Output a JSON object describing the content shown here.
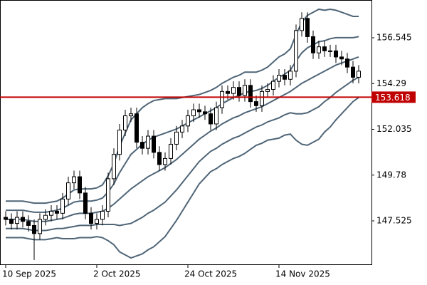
{
  "chart_data": {
    "type": "candlestick",
    "categories": [
      "10 Sep 2025",
      null,
      null,
      null,
      null,
      null,
      null,
      null,
      null,
      null,
      null,
      null,
      null,
      null,
      null,
      null,
      "2 Oct 2025",
      null,
      null,
      null,
      null,
      null,
      null,
      null,
      null,
      null,
      null,
      null,
      null,
      null,
      null,
      null,
      "24 Oct 2025",
      null,
      null,
      null,
      null,
      null,
      null,
      null,
      null,
      null,
      null,
      null,
      null,
      null,
      null,
      null,
      "14 Nov 2025",
      null,
      null,
      null,
      null,
      null,
      null,
      null,
      null,
      null,
      null,
      null,
      null,
      null,
      null
    ],
    "open": [
      147.7,
      147.6,
      147.4,
      147.7,
      147.5,
      147.3,
      146.9,
      147.6,
      147.8,
      148.0,
      147.9,
      148.6,
      149.4,
      149.7,
      148.9,
      147.9,
      147.4,
      147.6,
      148.0,
      149.6,
      150.8,
      152.0,
      152.7,
      152.8,
      151.4,
      151.1,
      151.7,
      150.9,
      150.3,
      150.6,
      151.3,
      151.9,
      152.2,
      152.7,
      153.0,
      152.9,
      152.8,
      152.3,
      153.1,
      153.9,
      153.8,
      154.1,
      153.7,
      154.2,
      153.4,
      153.2,
      153.9,
      154.0,
      154.4,
      154.7,
      154.5,
      154.9,
      156.9,
      157.5,
      156.6,
      155.8,
      156.1,
      155.9,
      155.9,
      155.6,
      155.5,
      155.1,
      154.6
    ],
    "high": [
      148.0,
      147.9,
      148.0,
      148.0,
      147.8,
      147.6,
      147.9,
      148.1,
      148.3,
      148.3,
      148.9,
      149.7,
      150.0,
      150.0,
      149.2,
      148.2,
      147.9,
      148.3,
      149.9,
      151.1,
      152.3,
      153.0,
      153.1,
      153.1,
      151.7,
      152.0,
      152.0,
      151.2,
      150.9,
      151.6,
      152.2,
      152.5,
      153.0,
      153.3,
      153.3,
      153.2,
      153.1,
      153.4,
      154.2,
      154.2,
      154.4,
      154.4,
      154.5,
      154.5,
      153.7,
      154.2,
      154.3,
      154.7,
      155.0,
      155.0,
      155.2,
      157.2,
      157.8,
      157.8,
      156.9,
      156.4,
      156.4,
      156.2,
      156.2,
      155.9,
      155.8,
      155.4,
      155.2
    ],
    "low": [
      147.3,
      147.1,
      147.1,
      147.2,
      147.0,
      145.6,
      146.6,
      147.3,
      147.5,
      147.6,
      147.6,
      148.3,
      149.1,
      148.6,
      147.6,
      147.1,
      147.1,
      147.3,
      147.7,
      149.3,
      150.5,
      151.7,
      152.4,
      151.1,
      150.8,
      150.8,
      150.6,
      150.0,
      150.0,
      150.3,
      151.0,
      151.6,
      151.9,
      152.4,
      152.6,
      152.5,
      152.0,
      152.0,
      152.8,
      153.5,
      153.5,
      153.4,
      153.4,
      153.1,
      152.9,
      152.9,
      153.6,
      153.7,
      154.1,
      154.2,
      154.2,
      154.6,
      156.6,
      156.3,
      155.5,
      155.5,
      155.6,
      155.6,
      155.3,
      155.2,
      154.8,
      154.3,
      154.3
    ],
    "close": [
      147.6,
      147.4,
      147.7,
      147.5,
      147.3,
      146.9,
      147.6,
      147.8,
      148.0,
      147.9,
      148.6,
      149.4,
      149.7,
      148.9,
      147.9,
      147.4,
      147.6,
      148.0,
      149.6,
      150.8,
      152.0,
      152.7,
      152.8,
      151.4,
      151.1,
      151.7,
      150.9,
      150.3,
      150.6,
      151.3,
      151.9,
      152.2,
      152.7,
      153.0,
      152.9,
      152.8,
      152.3,
      153.1,
      153.9,
      153.8,
      154.1,
      153.7,
      154.2,
      153.4,
      153.2,
      153.9,
      154.0,
      154.4,
      154.7,
      154.5,
      154.9,
      156.9,
      157.5,
      156.6,
      155.8,
      156.1,
      155.9,
      155.9,
      155.6,
      155.5,
      155.1,
      154.6,
      154.9
    ],
    "up_color": "#ffffff",
    "down_color": "#000000",
    "lines": [
      {
        "color": "#4f6577",
        "values": [
          148.5,
          148.5,
          148.5,
          148.5,
          148.45,
          148.4,
          148.4,
          148.4,
          148.45,
          148.5,
          148.65,
          148.85,
          149.05,
          149.1,
          149.1,
          149.1,
          149.15,
          149.3,
          149.75,
          150.35,
          151.2,
          151.85,
          152.5,
          152.8,
          153.1,
          153.3,
          153.45,
          153.5,
          153.55,
          153.55,
          153.55,
          153.6,
          153.65,
          153.7,
          153.75,
          153.85,
          153.95,
          154.1,
          154.3,
          154.45,
          154.6,
          154.7,
          154.85,
          154.85,
          154.85,
          154.95,
          155.1,
          155.35,
          155.6,
          155.75,
          156.0,
          156.7,
          157.3,
          157.65,
          157.8,
          157.95,
          157.9,
          157.95,
          157.9,
          157.8,
          157.7,
          157.6,
          157.6
        ]
      },
      {
        "color": "#4f6577",
        "values": [
          148.05,
          148.05,
          148.05,
          148.05,
          148.0,
          147.95,
          147.95,
          147.95,
          148.0,
          148.05,
          148.15,
          148.3,
          148.45,
          148.5,
          148.5,
          148.5,
          148.55,
          148.65,
          148.95,
          149.35,
          149.9,
          150.35,
          150.8,
          151.05,
          151.3,
          151.5,
          151.65,
          151.75,
          151.85,
          151.95,
          152.05,
          152.2,
          152.35,
          152.5,
          152.65,
          152.8,
          152.95,
          153.1,
          153.3,
          153.45,
          153.6,
          153.7,
          153.85,
          153.9,
          153.95,
          154.05,
          154.2,
          154.4,
          154.6,
          154.75,
          154.95,
          155.4,
          155.8,
          156.05,
          156.2,
          156.35,
          156.4,
          156.5,
          156.55,
          156.55,
          156.55,
          156.55,
          156.6
        ]
      },
      {
        "color": "#4f6577",
        "values": [
          147.6,
          147.6,
          147.6,
          147.6,
          147.55,
          147.5,
          147.5,
          147.5,
          147.55,
          147.6,
          147.65,
          147.75,
          147.85,
          147.9,
          147.9,
          147.9,
          147.95,
          148.0,
          148.15,
          148.35,
          148.6,
          148.85,
          149.1,
          149.3,
          149.5,
          149.7,
          149.85,
          150.0,
          150.15,
          150.35,
          150.55,
          150.8,
          151.05,
          151.3,
          151.55,
          151.75,
          151.95,
          152.1,
          152.3,
          152.45,
          152.6,
          152.7,
          152.85,
          152.95,
          153.05,
          153.15,
          153.3,
          153.45,
          153.6,
          153.75,
          153.9,
          154.1,
          154.3,
          154.45,
          154.6,
          154.75,
          154.9,
          155.05,
          155.2,
          155.3,
          155.4,
          155.5,
          155.6
        ]
      },
      {
        "color": "#4f6577",
        "values": [
          147.15,
          147.15,
          147.15,
          147.15,
          147.1,
          147.05,
          147.05,
          147.05,
          147.1,
          147.15,
          147.15,
          147.2,
          147.25,
          147.3,
          147.3,
          147.3,
          147.35,
          147.35,
          147.35,
          147.35,
          147.3,
          147.35,
          147.4,
          147.55,
          147.7,
          147.9,
          148.05,
          148.25,
          148.45,
          148.75,
          149.05,
          149.4,
          149.75,
          150.1,
          150.45,
          150.7,
          150.95,
          151.1,
          151.3,
          151.45,
          151.6,
          151.7,
          151.85,
          152.0,
          152.15,
          152.25,
          152.4,
          152.5,
          152.6,
          152.75,
          152.85,
          152.8,
          152.8,
          152.85,
          153.0,
          153.15,
          153.4,
          153.6,
          153.85,
          154.05,
          154.25,
          154.45,
          154.6
        ]
      },
      {
        "color": "#4f6577",
        "values": [
          146.7,
          146.7,
          146.7,
          146.7,
          146.65,
          146.6,
          146.6,
          146.6,
          146.65,
          146.7,
          146.65,
          146.65,
          146.65,
          146.7,
          146.7,
          146.7,
          146.75,
          146.7,
          146.55,
          146.35,
          146.0,
          145.85,
          145.7,
          145.8,
          145.9,
          146.1,
          146.25,
          146.5,
          146.75,
          147.15,
          147.55,
          148.0,
          148.45,
          148.9,
          149.35,
          149.65,
          149.95,
          150.1,
          150.3,
          150.45,
          150.6,
          150.7,
          150.85,
          151.05,
          151.25,
          151.35,
          151.5,
          151.55,
          151.6,
          151.75,
          151.8,
          151.5,
          151.3,
          151.25,
          151.4,
          151.55,
          151.9,
          152.15,
          152.5,
          152.8,
          153.1,
          153.4,
          153.6
        ]
      }
    ],
    "price_line": {
      "value": 153.618,
      "color": "#c00000"
    },
    "ylim": [
      145.35,
      158.405
    ],
    "yticks": [
      147.525,
      149.78,
      152.035,
      154.29,
      156.545
    ]
  }
}
